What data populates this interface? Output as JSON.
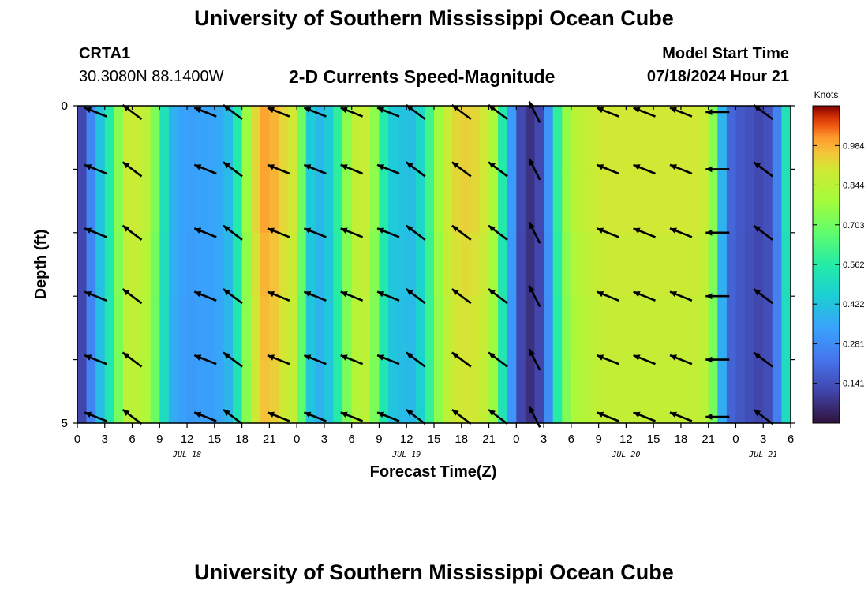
{
  "page": {
    "title": "University of Southern Mississippi Ocean Cube",
    "station_id": "CRTA1",
    "coordinates": "30.3080N  88.1400W",
    "subtitle": "2-D Currents Speed-Magnitude",
    "model_start_label": "Model Start Time",
    "model_start_value": "07/18/2024 Hour 21",
    "bottom_title": "University of Southern Mississippi Ocean Cube"
  },
  "chart_data": {
    "type": "heatmap",
    "title": "2-D Currents Speed-Magnitude",
    "xlabel": "Forecast Time(Z)",
    "ylabel": "Depth (ft)",
    "xlim": [
      0,
      78
    ],
    "ylim": [
      0,
      5
    ],
    "y_ticks": [
      0,
      5
    ],
    "x_tick_labels": [
      "0",
      "3",
      "6",
      "9",
      "12",
      "15",
      "18",
      "21",
      "0",
      "3",
      "6",
      "9",
      "12",
      "15",
      "18",
      "21",
      "0",
      "3",
      "6",
      "9",
      "12",
      "15",
      "18",
      "21",
      "0",
      "3",
      "6"
    ],
    "date_labels": [
      {
        "hour": 12,
        "text": "JUL 18"
      },
      {
        "hour": 36,
        "text": "JUL 19"
      },
      {
        "hour": 60,
        "text": "JUL 20"
      },
      {
        "hour": 75,
        "text": "JUL 21"
      }
    ],
    "colorbar": {
      "label": "Knots",
      "range": [
        0,
        1.125
      ],
      "ticks": [
        "0.984",
        "0.844",
        "0.703",
        "0.562",
        "0.422",
        "0.281",
        "0.141"
      ]
    },
    "speed_by_hour": [
      0.12,
      0.27,
      0.42,
      0.56,
      0.74,
      0.88,
      0.88,
      0.85,
      0.72,
      0.52,
      0.38,
      0.34,
      0.33,
      0.34,
      0.34,
      0.36,
      0.4,
      0.55,
      0.77,
      0.93,
      1.0,
      0.98,
      0.93,
      0.9,
      0.7,
      0.44,
      0.39,
      0.44,
      0.58,
      0.75,
      0.86,
      0.88,
      0.75,
      0.56,
      0.44,
      0.42,
      0.41,
      0.48,
      0.62,
      0.78,
      0.88,
      0.93,
      0.94,
      0.93,
      0.9,
      0.8,
      0.55,
      0.32,
      0.12,
      0.07,
      0.12,
      0.3,
      0.58,
      0.76,
      0.84,
      0.86,
      0.88,
      0.9,
      0.9,
      0.9,
      0.9,
      0.9,
      0.9,
      0.9,
      0.9,
      0.9,
      0.9,
      0.9,
      0.88,
      0.74,
      0.38,
      0.19,
      0.16,
      0.14,
      0.12,
      0.14,
      0.26,
      0.52,
      0.8
    ],
    "vectors": {
      "rows_depth": [
        0.1,
        1.0,
        2.0,
        3.0,
        4.0,
        4.9
      ],
      "columns": [
        {
          "hour": 2,
          "dir": "wnw"
        },
        {
          "hour": 6,
          "dir": "nw"
        },
        {
          "hour": 14,
          "dir": "wnw"
        },
        {
          "hour": 17,
          "dir": "nw"
        },
        {
          "hour": 22,
          "dir": "wnw"
        },
        {
          "hour": 26,
          "dir": "wnw"
        },
        {
          "hour": 30,
          "dir": "wnw"
        },
        {
          "hour": 34,
          "dir": "wnw"
        },
        {
          "hour": 37,
          "dir": "nw"
        },
        {
          "hour": 42,
          "dir": "nw"
        },
        {
          "hour": 46,
          "dir": "nw"
        },
        {
          "hour": 50,
          "dir": "nnw"
        },
        {
          "hour": 58,
          "dir": "wnw"
        },
        {
          "hour": 62,
          "dir": "wnw"
        },
        {
          "hour": 66,
          "dir": "wnw"
        },
        {
          "hour": 70,
          "dir": "w"
        },
        {
          "hour": 75,
          "dir": "nw"
        }
      ]
    }
  }
}
